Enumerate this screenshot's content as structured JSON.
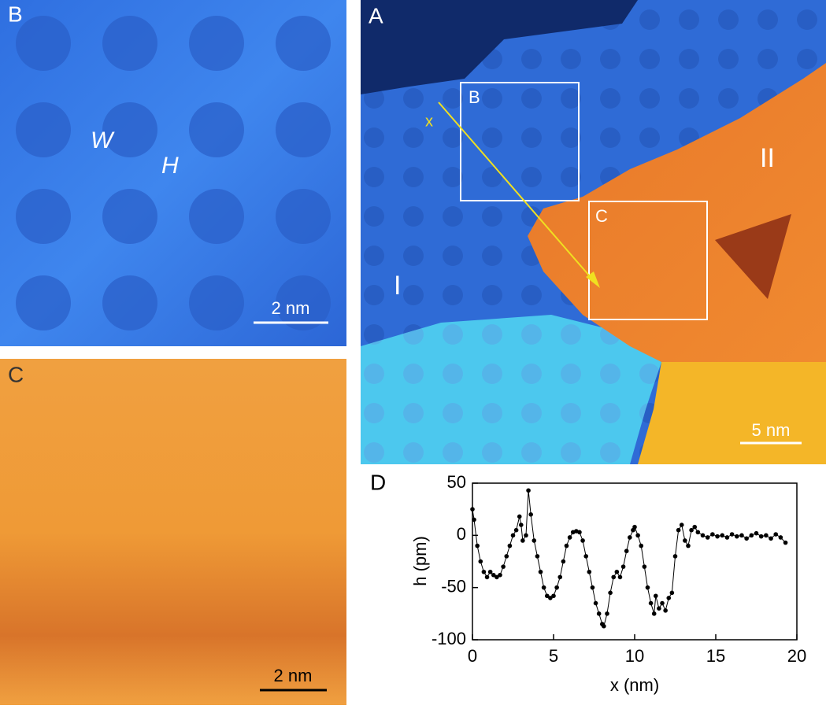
{
  "panel_b": {
    "label": "B",
    "annotations": [
      "W",
      "H"
    ],
    "scale_bar": "2 nm"
  },
  "panel_c": {
    "label": "C",
    "scale_bar": "2 nm"
  },
  "panel_a": {
    "label": "A",
    "regions": [
      "I",
      "II"
    ],
    "boxes": [
      "B",
      "C"
    ],
    "arrow_start": "x",
    "scale_bar": "5 nm"
  },
  "chart_data": {
    "type": "line",
    "panel_label": "D",
    "xlabel": "x (nm)",
    "ylabel": "h (pm)",
    "color": "#000000",
    "x": [
      0,
      0.1,
      0.3,
      0.5,
      0.7,
      0.9,
      1.1,
      1.3,
      1.5,
      1.7,
      1.9,
      2.1,
      2.3,
      2.5,
      2.7,
      2.9,
      3.0,
      3.1,
      3.3,
      3.45,
      3.6,
      3.8,
      4.0,
      4.2,
      4.4,
      4.6,
      4.8,
      5.0,
      5.2,
      5.4,
      5.6,
      5.8,
      6.0,
      6.2,
      6.4,
      6.6,
      6.8,
      7.0,
      7.2,
      7.4,
      7.6,
      7.8,
      8.0,
      8.1,
      8.3,
      8.5,
      8.7,
      8.9,
      9.1,
      9.3,
      9.5,
      9.7,
      9.9,
      10.0,
      10.2,
      10.4,
      10.6,
      10.8,
      11.0,
      11.2,
      11.3,
      11.5,
      11.7,
      11.9,
      12.1,
      12.3,
      12.5,
      12.7,
      12.9,
      13.1,
      13.3,
      13.5,
      13.7,
      13.9,
      14.2,
      14.5,
      14.8,
      15.1,
      15.4,
      15.7,
      16.0,
      16.3,
      16.6,
      16.9,
      17.2,
      17.5,
      17.8,
      18.1,
      18.4,
      18.7,
      19.0,
      19.3
    ],
    "y": [
      25,
      15,
      -10,
      -25,
      -35,
      -40,
      -35,
      -38,
      -40,
      -38,
      -30,
      -20,
      -10,
      0,
      5,
      18,
      10,
      -5,
      0,
      43,
      20,
      -5,
      -20,
      -35,
      -50,
      -58,
      -60,
      -58,
      -50,
      -40,
      -25,
      -10,
      -2,
      3,
      4,
      3,
      -5,
      -20,
      -35,
      -50,
      -65,
      -75,
      -85,
      -87,
      -75,
      -55,
      -40,
      -35,
      -40,
      -30,
      -15,
      -2,
      5,
      8,
      0,
      -10,
      -30,
      -50,
      -65,
      -75,
      -58,
      -70,
      -65,
      -72,
      -60,
      -55,
      -20,
      5,
      10,
      -5,
      -10,
      5,
      8,
      3,
      0,
      -2,
      1,
      -1,
      0,
      -2,
      1,
      -1,
      0,
      -3,
      0,
      2,
      -1,
      0,
      -3,
      1,
      -2,
      -7
    ],
    "xlim": [
      0,
      20
    ],
    "ylim": [
      -100,
      50
    ],
    "xticks": [
      0,
      5,
      10,
      15,
      20
    ],
    "yticks": [
      -100,
      -50,
      0,
      50
    ]
  }
}
